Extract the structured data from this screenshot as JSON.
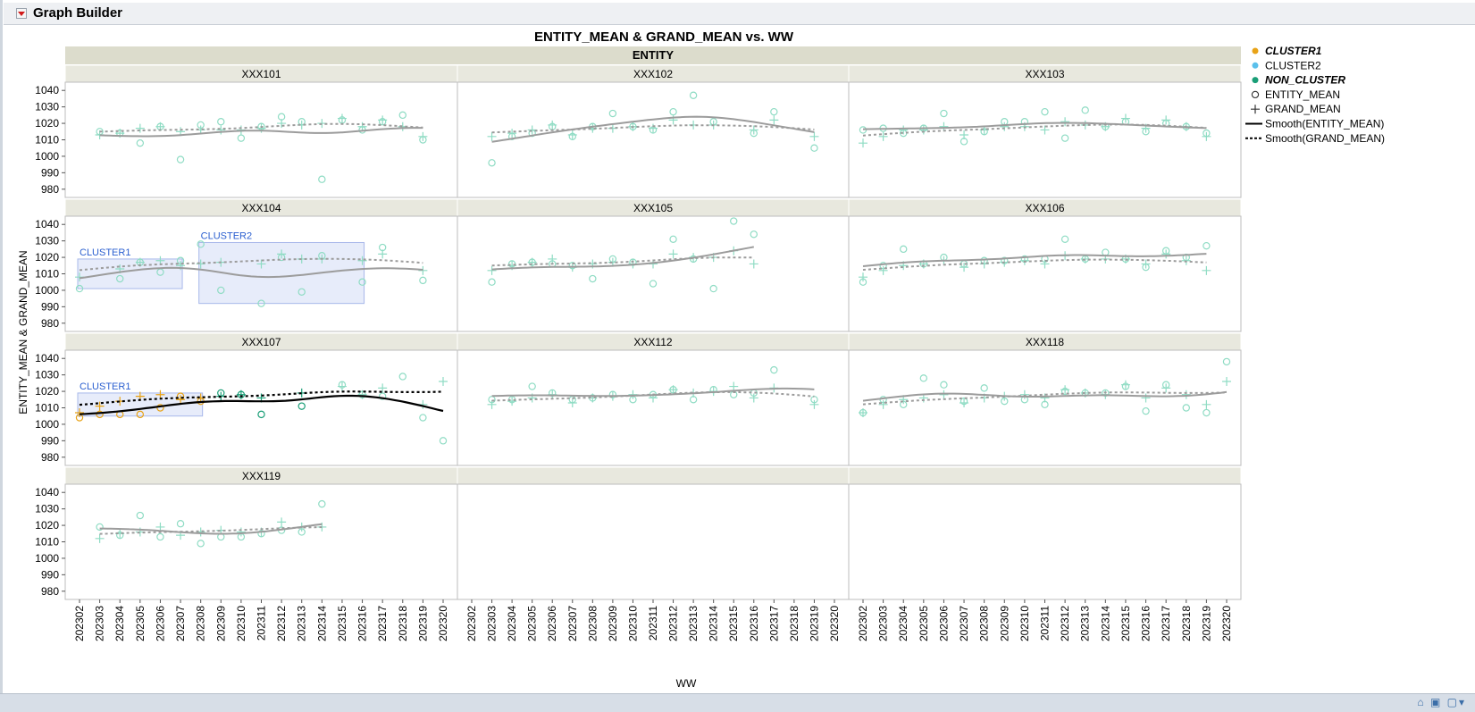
{
  "app": {
    "title": "Graph Builder"
  },
  "status_icons": "⌂ ▣ ▢▾",
  "chart_data": {
    "type": "scatter",
    "title": "ENTITY_MEAN & GRAND_MEAN vs. WW",
    "group_title": "ENTITY",
    "xlabel": "WW",
    "ylabel": "ENTITY_MEAN & GRAND_MEAN",
    "ylim": [
      975,
      1045
    ],
    "yticks": [
      980,
      990,
      1000,
      1010,
      1020,
      1030,
      1040
    ],
    "x_categories": [
      "202302",
      "202303",
      "202304",
      "202305",
      "202306",
      "202307",
      "202308",
      "202309",
      "202310",
      "202311",
      "202312",
      "202313",
      "202314",
      "202315",
      "202316",
      "202317",
      "202318",
      "202319",
      "202320"
    ],
    "legend": {
      "items": [
        {
          "label": "CLUSTER1",
          "marker": "dot",
          "color": "#e8a317",
          "emphasis": true
        },
        {
          "label": "CLUSTER2",
          "marker": "dot",
          "color": "#5bc0eb",
          "emphasis": false
        },
        {
          "label": "NON_CLUSTER",
          "marker": "dot",
          "color": "#1a9e77",
          "emphasis": true
        },
        {
          "label": "ENTITY_MEAN",
          "marker": "circle",
          "color": "#333333",
          "emphasis": false
        },
        {
          "label": "GRAND_MEAN",
          "marker": "plus",
          "color": "#333333",
          "emphasis": false
        },
        {
          "label": "Smooth(ENTITY_MEAN)",
          "marker": "solid",
          "color": "#000000",
          "emphasis": false
        },
        {
          "label": "Smooth(GRAND_MEAN)",
          "marker": "dashed",
          "color": "#000000",
          "emphasis": false
        }
      ]
    },
    "colors": {
      "cluster1": "#e8a317",
      "cluster2": "#5bc0eb",
      "non_cluster": "#1a9e77",
      "faded": "#8fdcc4",
      "smooth": "#9c9c9c"
    },
    "panels": [
      {
        "name": "XXX101",
        "highlight": false,
        "entity_mean": [
          null,
          1015,
          1014,
          1008,
          1018,
          998,
          1019,
          1021,
          1011,
          1018,
          1024,
          1021,
          986,
          1022,
          1016,
          1021,
          1025,
          1010,
          null
        ],
        "grand_mean": [
          null,
          1013,
          1014,
          1017,
          1018,
          1015,
          1016,
          1016,
          1016,
          1017,
          1020,
          1019,
          1020,
          1023,
          1018,
          1022,
          1018,
          1012,
          null
        ]
      },
      {
        "name": "XXX102",
        "highlight": false,
        "entity_mean": [
          null,
          996,
          1012,
          1014,
          1018,
          1012,
          1018,
          1026,
          1018,
          1016,
          1027,
          1037,
          1021,
          null,
          1014,
          1027,
          null,
          1005,
          null
        ],
        "grand_mean": [
          null,
          1012,
          1014,
          1016,
          1019,
          1013,
          1017,
          1017,
          1018,
          1017,
          1022,
          1019,
          1019,
          null,
          1016,
          1022,
          null,
          1012,
          null
        ]
      },
      {
        "name": "XXX103",
        "highlight": false,
        "entity_mean": [
          1016,
          1017,
          1014,
          1017,
          1026,
          1009,
          1015,
          1021,
          1021,
          1027,
          1011,
          1028,
          1018,
          1021,
          1015,
          1020,
          1018,
          1014,
          null
        ],
        "grand_mean": [
          1008,
          1012,
          1016,
          1016,
          1018,
          1013,
          1016,
          1018,
          1018,
          1016,
          1021,
          1019,
          1018,
          1023,
          1017,
          1022,
          1018,
          1012,
          null
        ]
      },
      {
        "name": "XXX104",
        "highlight": false,
        "entity_mean": [
          1001,
          null,
          1007,
          1017,
          1011,
          1018,
          1028,
          1000,
          null,
          992,
          1020,
          999,
          1021,
          null,
          1005,
          1026,
          null,
          1006,
          null
        ],
        "grand_mean": [
          1008,
          null,
          1013,
          1017,
          1018,
          1015,
          1016,
          1017,
          null,
          1016,
          1022,
          1019,
          1019,
          null,
          1018,
          1022,
          null,
          1012,
          null
        ],
        "clusters": [
          {
            "label": "CLUSTER1",
            "from": 0,
            "to": 5,
            "ymin": 1001,
            "ymax": 1019
          },
          {
            "label": "CLUSTER2",
            "from": 6,
            "to": 14,
            "ymin": 992,
            "ymax": 1029
          }
        ]
      },
      {
        "name": "XXX105",
        "highlight": false,
        "entity_mean": [
          null,
          1005,
          1016,
          1017,
          1016,
          1015,
          1007,
          1019,
          1017,
          1004,
          1031,
          1019,
          1001,
          1042,
          1034,
          null,
          null,
          null,
          null
        ],
        "grand_mean": [
          null,
          1012,
          1015,
          1017,
          1019,
          1014,
          1016,
          1017,
          1016,
          1016,
          1022,
          1020,
          1020,
          1024,
          1016,
          null,
          null,
          null,
          null
        ]
      },
      {
        "name": "XXX106",
        "highlight": false,
        "entity_mean": [
          1005,
          1015,
          1025,
          1016,
          1020,
          1016,
          1018,
          1018,
          1019,
          1019,
          1031,
          1019,
          1023,
          1019,
          1014,
          1024,
          1020,
          1027,
          null
        ],
        "grand_mean": [
          1008,
          1012,
          1015,
          1016,
          1018,
          1014,
          1016,
          1017,
          1018,
          1016,
          1021,
          1019,
          1019,
          1019,
          1016,
          1022,
          1018,
          1012,
          null
        ]
      },
      {
        "name": "XXX107",
        "highlight": true,
        "entity_mean": [
          1004,
          1006,
          1006,
          1006,
          1010,
          1017,
          1014,
          1019,
          1018,
          1006,
          null,
          1011,
          null,
          1024,
          1018,
          1017,
          1029,
          1004,
          990
        ],
        "grand_mean": [
          1007,
          1011,
          1014,
          1017,
          1018,
          1015,
          1016,
          1017,
          1018,
          1016,
          null,
          1019,
          null,
          1023,
          1018,
          1022,
          null,
          1012,
          1026
        ],
        "point_groups": [
          "cluster1",
          "cluster1",
          "cluster1",
          "cluster1",
          "cluster1",
          "cluster1",
          "cluster1",
          "non_cluster",
          "non_cluster",
          "non_cluster",
          "other",
          "non_cluster",
          "other",
          "other",
          "other",
          "other",
          "other",
          "other",
          "other"
        ],
        "clusters": [
          {
            "label": "CLUSTER1",
            "from": 0,
            "to": 6,
            "ymin": 1005,
            "ymax": 1019
          }
        ]
      },
      {
        "name": "XXX112",
        "highlight": false,
        "entity_mean": [
          null,
          1015,
          1015,
          1023,
          1019,
          1015,
          1016,
          1018,
          1015,
          1018,
          1021,
          1015,
          1021,
          1018,
          1019,
          1033,
          null,
          1015,
          null
        ],
        "grand_mean": [
          null,
          1012,
          1014,
          1016,
          1018,
          1013,
          1016,
          1017,
          1018,
          1016,
          1021,
          1019,
          1020,
          1023,
          1016,
          1022,
          null,
          1012,
          null
        ]
      },
      {
        "name": "XXX118",
        "highlight": false,
        "entity_mean": [
          1007,
          1015,
          1012,
          1028,
          1024,
          1014,
          1022,
          1014,
          1015,
          1012,
          1020,
          1019,
          1019,
          1023,
          1008,
          1024,
          1010,
          1007,
          1038
        ],
        "grand_mean": [
          1007,
          1012,
          1015,
          1016,
          1018,
          1013,
          1016,
          1017,
          1018,
          1016,
          1021,
          1019,
          1018,
          1024,
          1016,
          1022,
          1018,
          1012,
          1026
        ]
      },
      {
        "name": "XXX119",
        "highlight": false,
        "entity_mean": [
          null,
          1019,
          1014,
          1026,
          1013,
          1021,
          1009,
          1013,
          1013,
          1015,
          1017,
          1016,
          1033,
          null,
          null,
          null,
          null,
          null,
          null
        ],
        "grand_mean": [
          null,
          1012,
          1015,
          1016,
          1019,
          1014,
          1016,
          1017,
          1016,
          1016,
          1022,
          1019,
          1019,
          null,
          null,
          null,
          null,
          null,
          null
        ]
      },
      {
        "name": "",
        "highlight": false,
        "entity_mean": [],
        "grand_mean": []
      },
      {
        "name": "",
        "highlight": false,
        "entity_mean": [],
        "grand_mean": []
      }
    ]
  }
}
